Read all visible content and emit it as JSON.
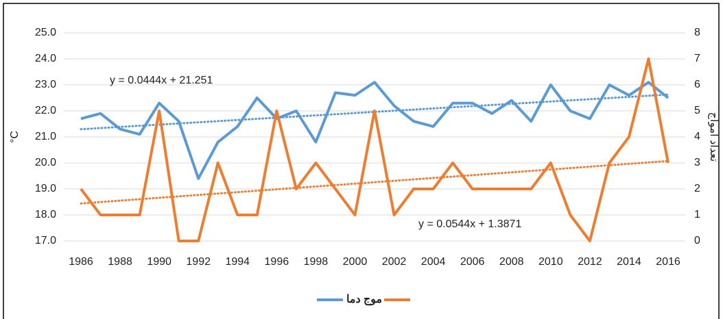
{
  "chart_data": {
    "type": "line",
    "categories": [
      "1986",
      null,
      "1988",
      null,
      "1990",
      null,
      "1992",
      null,
      "1994",
      null,
      "1996",
      null,
      "1998",
      null,
      "2000",
      null,
      "2002",
      null,
      "2004",
      null,
      "2006",
      null,
      "2008",
      null,
      "2010",
      null,
      "2012",
      null,
      "2014",
      null,
      "2016"
    ],
    "y_label": "°C",
    "y2_label": "تعداد امواج",
    "ylim": [
      17,
      25
    ],
    "yticks": [
      {
        "value": 17,
        "label": "17.0"
      },
      {
        "value": 18,
        "label": "18.0"
      },
      {
        "value": 19,
        "label": "19.0"
      },
      {
        "value": 20,
        "label": "20.0"
      },
      {
        "value": 21,
        "label": "21.0"
      },
      {
        "value": 22,
        "label": "22.0"
      },
      {
        "value": 23,
        "label": "23.0"
      },
      {
        "value": 24,
        "label": "24.0"
      },
      {
        "value": 25,
        "label": "25.0"
      }
    ],
    "y2lim": [
      0,
      8
    ],
    "y2ticks": [
      0,
      1,
      2,
      3,
      4,
      5,
      6,
      7,
      8
    ],
    "grid": true,
    "legend": "bottom",
    "series": [
      {
        "name": "دما",
        "color": "#5b9bd5",
        "values": [
          21.7,
          21.9,
          21.3,
          21.1,
          22.3,
          21.6,
          19.4,
          20.8,
          21.4,
          22.5,
          21.7,
          22.0,
          20.8,
          22.7,
          22.6,
          23.1,
          22.2,
          21.6,
          21.4,
          22.3,
          22.3,
          21.9,
          22.4,
          21.6,
          23.0,
          22.0,
          21.7,
          23.0,
          22.6,
          23.1,
          22.5
        ],
        "trendline": {
          "slope": 0.0444,
          "intercept": 21.251,
          "label": "y = 0.0444x + 21.251"
        }
      },
      {
        "name": "موج",
        "color": "#ed7d31",
        "axis": "y2",
        "values": [
          2,
          1,
          1,
          1,
          5,
          0,
          0,
          3,
          1,
          1,
          5,
          2,
          3,
          2,
          1,
          5,
          1,
          2,
          2,
          3,
          2,
          2,
          2,
          2,
          3,
          1,
          0,
          3,
          4,
          7,
          3
        ],
        "trendline": {
          "slope": 0.0544,
          "intercept": 1.3871,
          "label": "y = 0.0544x + 1.3871"
        }
      }
    ]
  }
}
